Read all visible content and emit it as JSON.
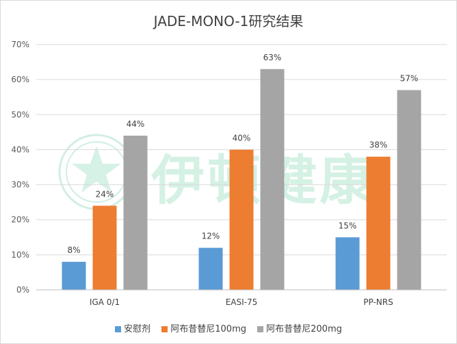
{
  "colors": {
    "placebo": "#5B9BD5",
    "dose100": "#ED7D31",
    "dose200": "#A5A5A5",
    "grid": "#d9d9d9",
    "watermark": "#78d2aa"
  },
  "watermark": {
    "text": "伊顿健康",
    "icon": "star-seal-icon"
  },
  "chart_data": {
    "type": "bar",
    "title": "JADE-MONO-1研究结果",
    "categories": [
      "IGA 0/1",
      "EASI-75",
      "PP-NRS"
    ],
    "series": [
      {
        "name": "安慰剂",
        "values": [
          8,
          12,
          15
        ],
        "labels": [
          "8%",
          "12%",
          "15%"
        ]
      },
      {
        "name": "阿布昔替尼100mg",
        "values": [
          24,
          40,
          38
        ],
        "labels": [
          "24%",
          "40%",
          "38%"
        ]
      },
      {
        "name": "阿布昔替尼200mg",
        "values": [
          44,
          63,
          57
        ],
        "labels": [
          "44%",
          "63%",
          "57%"
        ]
      }
    ],
    "y_ticks": [
      "0%",
      "10%",
      "20%",
      "30%",
      "40%",
      "50%",
      "60%",
      "70%"
    ],
    "ylim": [
      0,
      70
    ],
    "grid": true,
    "legend_position": "bottom",
    "xlabel": "",
    "ylabel": ""
  }
}
